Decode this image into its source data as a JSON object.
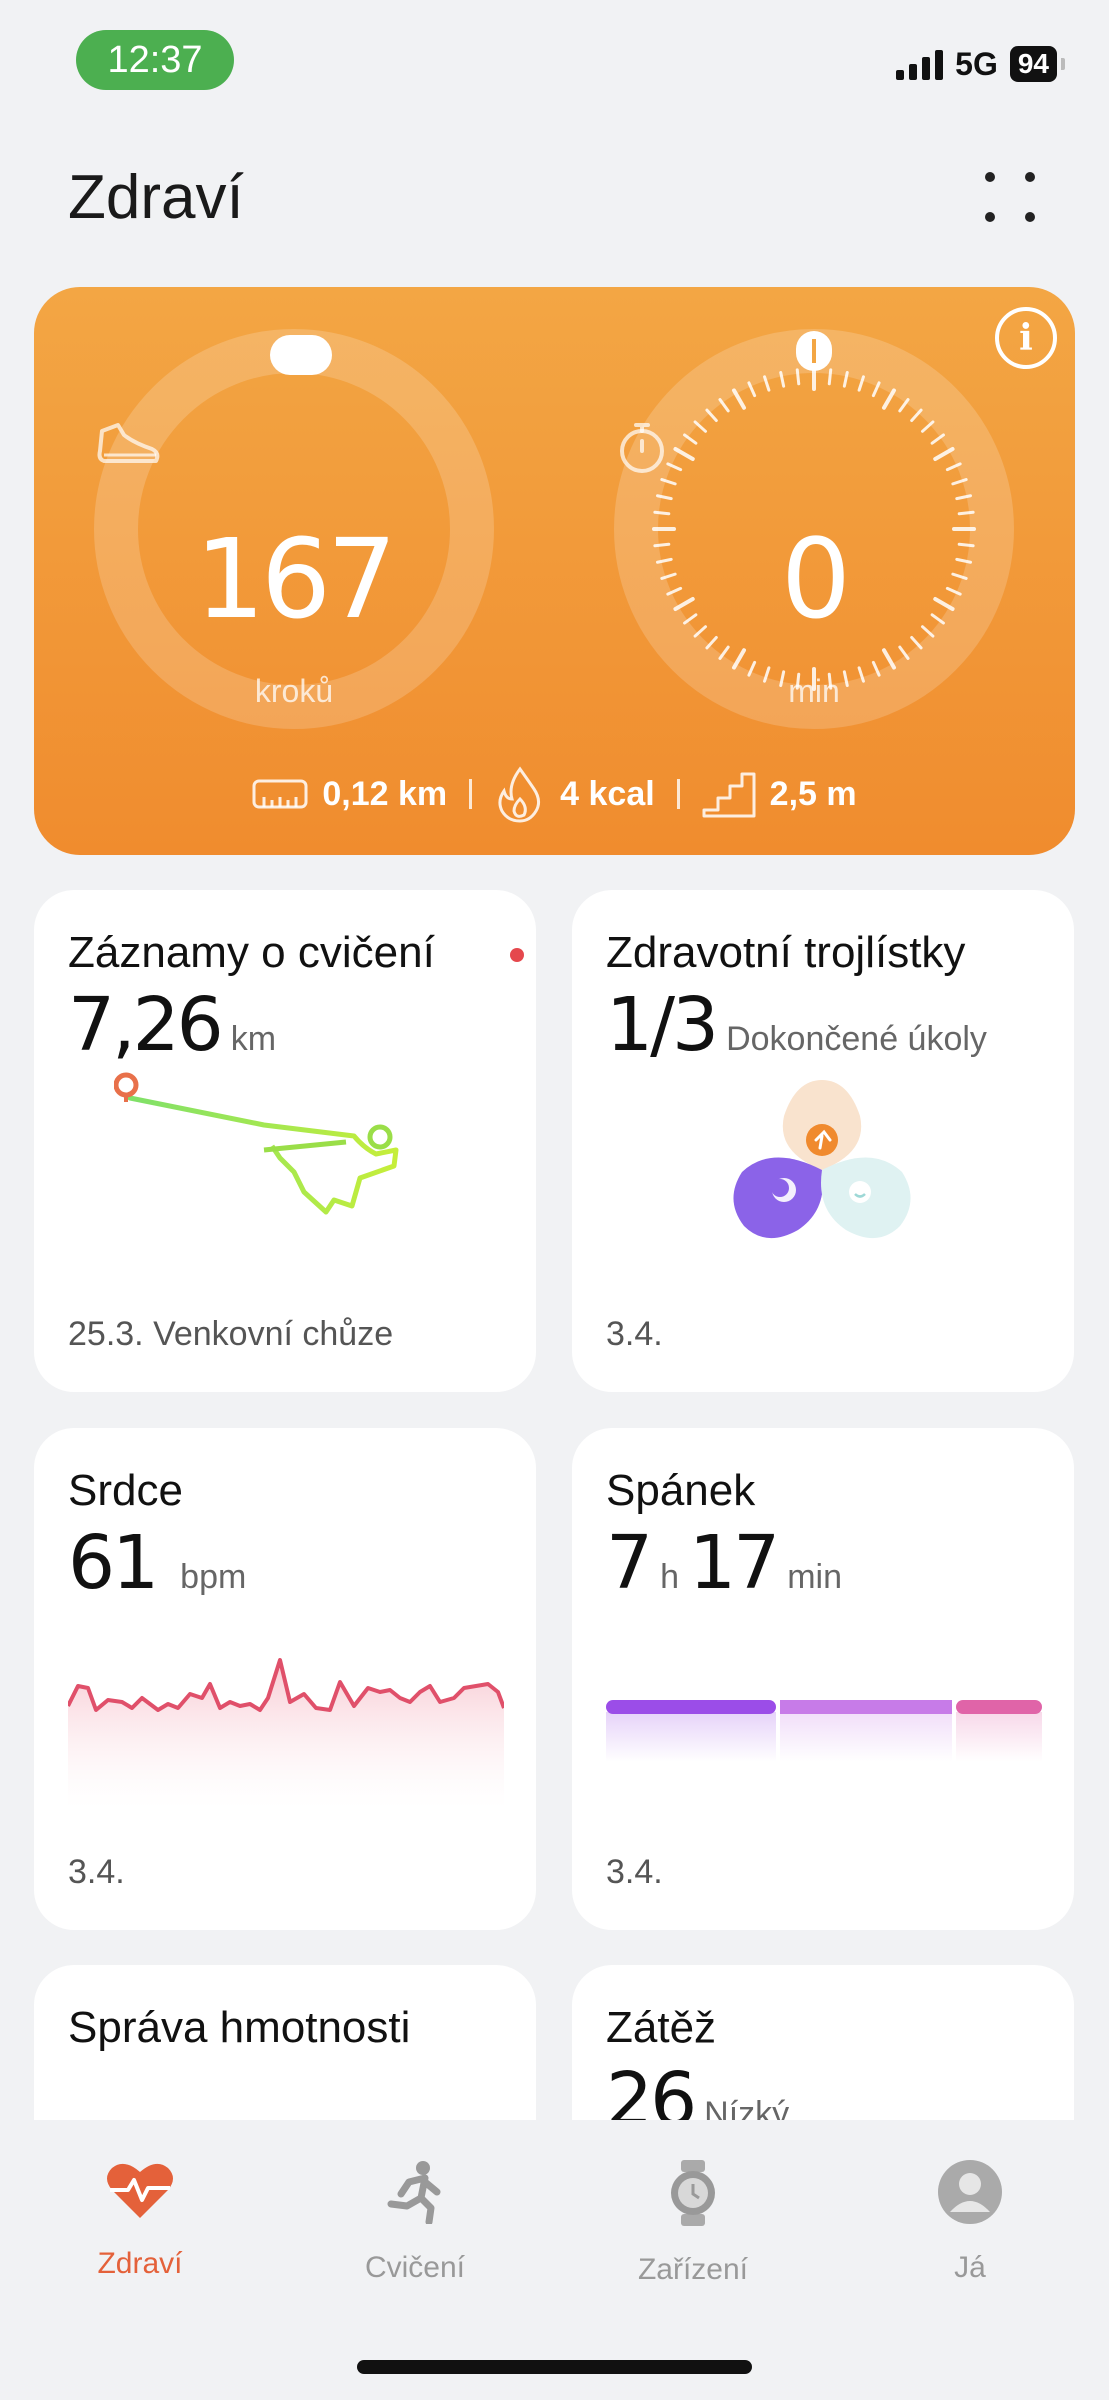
{
  "status_bar": {
    "time": "12:37",
    "network": "5G",
    "battery": "94"
  },
  "header": {
    "title": "Zdraví"
  },
  "activity": {
    "steps_value": "167",
    "steps_unit": "kroků",
    "minutes_value": "0",
    "minutes_unit": "min",
    "distance": "0,12 km",
    "calories": "4 kcal",
    "elevation": "2,5 m"
  },
  "cards": {
    "exercise": {
      "title": "Záznamy o cvičení",
      "value": "7,26",
      "unit": "km",
      "date": "25.3. Venkovní chůze"
    },
    "trefoil": {
      "title": "Zdravotní trojlístky",
      "value": "1/3",
      "unit": "Dokončené úkoly",
      "date": "3.4."
    },
    "heart": {
      "title": "Srdce",
      "value": "61",
      "unit": "bpm",
      "date": "3.4."
    },
    "sleep": {
      "title": "Spánek",
      "hours": "7",
      "hours_unit": "h",
      "minutes": "17",
      "minutes_unit": "min",
      "date": "3.4."
    },
    "weight": {
      "title": "Správa hmotnosti"
    },
    "stress": {
      "title": "Zátěž",
      "value": "26",
      "unit": "Nízký"
    }
  },
  "nav": [
    {
      "label": "Zdraví",
      "icon": "heart-pulse-icon",
      "active": true
    },
    {
      "label": "Cvičení",
      "icon": "runner-icon",
      "active": false
    },
    {
      "label": "Zařízení",
      "icon": "watch-icon",
      "active": false
    },
    {
      "label": "Já",
      "icon": "person-icon",
      "active": false
    }
  ],
  "colors": {
    "accent": "#e4613a",
    "activity_card": "#f39a3a",
    "heart_line": "#e0506a",
    "sleep_deep": "#9b4de8",
    "sleep_light": "#c77be8",
    "sleep_rem": "#e064a8"
  }
}
